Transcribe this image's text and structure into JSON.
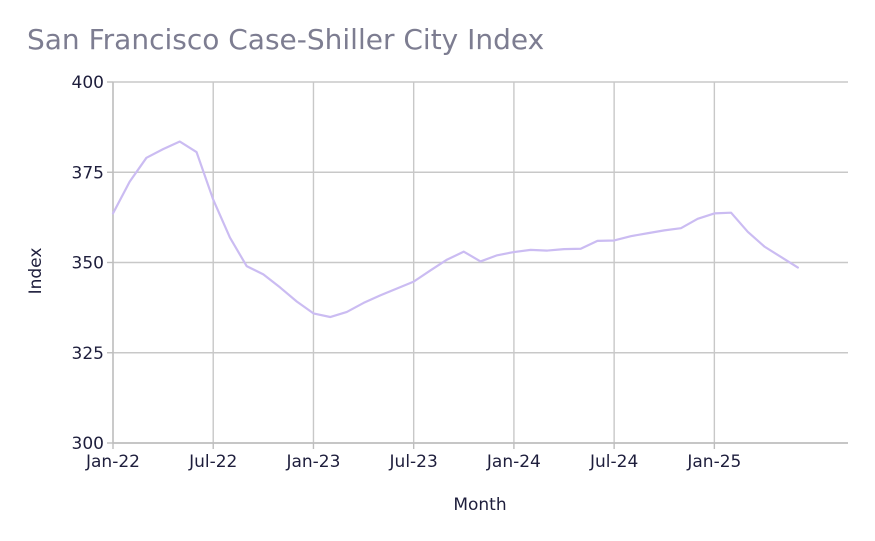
{
  "chart_data": {
    "type": "line",
    "title": "San Francisco Case-Shiller City Index",
    "xlabel": "Month",
    "ylabel": "Index",
    "ylim": [
      300,
      400
    ],
    "xlim": [
      "2022-01",
      "2025-09"
    ],
    "grid": true,
    "legend": "none",
    "line_color": "#cbbcf2",
    "x_ticks": [
      {
        "label": "Jan-22",
        "month": "2022-01"
      },
      {
        "label": "Jul-22",
        "month": "2022-07"
      },
      {
        "label": "Jan-23",
        "month": "2023-01"
      },
      {
        "label": "Jul-23",
        "month": "2023-07"
      },
      {
        "label": "Jan-24",
        "month": "2024-01"
      },
      {
        "label": "Jul-24",
        "month": "2024-07"
      },
      {
        "label": "Jan-25",
        "month": "2025-01"
      }
    ],
    "y_ticks": [
      300,
      325,
      350,
      375,
      400
    ],
    "series": [
      {
        "x": [
          "2022-01",
          "2022-02",
          "2022-03",
          "2022-04",
          "2022-05",
          "2022-06",
          "2022-07",
          "2022-08",
          "2022-09",
          "2022-10",
          "2022-11",
          "2022-12",
          "2023-01",
          "2023-02",
          "2023-03",
          "2023-04",
          "2023-05",
          "2023-06",
          "2023-07",
          "2023-08",
          "2023-09",
          "2023-10",
          "2023-11",
          "2023-12",
          "2024-01",
          "2024-02",
          "2024-03",
          "2024-04",
          "2024-05",
          "2024-06",
          "2024-07",
          "2024-08",
          "2024-09",
          "2024-10",
          "2024-11",
          "2024-12",
          "2025-01",
          "2025-02",
          "2025-03",
          "2025-04",
          "2025-05",
          "2025-06"
        ],
        "values": [
          363.6,
          372.4,
          379.0,
          381.4,
          383.5,
          380.6,
          367.4,
          356.9,
          349.0,
          346.7,
          343.1,
          339.2,
          335.9,
          334.9,
          336.3,
          338.8,
          340.9,
          342.8,
          344.7,
          347.8,
          350.8,
          353.0,
          350.3,
          352.0,
          352.9,
          353.5,
          353.3,
          353.7,
          353.8,
          356.0,
          356.1,
          357.3,
          358.1,
          358.9,
          359.5,
          362.1,
          363.6,
          363.8,
          358.5,
          354.4,
          351.5,
          348.6
        ]
      }
    ]
  }
}
